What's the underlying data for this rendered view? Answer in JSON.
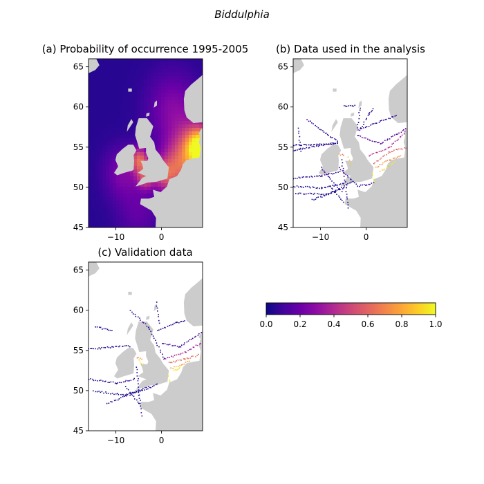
{
  "figure": {
    "suptitle": "Biddulphia"
  },
  "colors": {
    "land": "#cccccc",
    "spine": "#000000",
    "background": "#ffffff",
    "plasma": [
      "#0d0887",
      "#41049d",
      "#6a00a8",
      "#8f0da4",
      "#b12a90",
      "#cc4778",
      "#e16462",
      "#f2844b",
      "#fca636",
      "#fcce25",
      "#f0f921"
    ]
  },
  "chart_data": [
    {
      "type": "heatmap",
      "title": "(a) Probability of occurrence 1995-2005",
      "subtitle": "",
      "xlabel": "",
      "ylabel": "",
      "xlim": [
        -16,
        9
      ],
      "ylim": [
        45,
        66
      ],
      "x_ticks": [
        -10,
        0
      ],
      "y_ticks": [
        45,
        50,
        55,
        60,
        65
      ],
      "x_tick_labels": [
        "−10",
        "0"
      ],
      "y_tick_labels": [
        "45",
        "50",
        "55",
        "60",
        "65"
      ],
      "field": {
        "base_value": 0.05,
        "hotspots": [
          {
            "lon": 8.5,
            "lat": 55.0,
            "value": 0.85,
            "spread": 1.6
          },
          {
            "lon": 6.5,
            "lat": 54.0,
            "value": 0.45,
            "spread": 3.0
          },
          {
            "lon": -4.8,
            "lat": 53.4,
            "value": 0.55,
            "spread": 1.1
          },
          {
            "lon": -3.5,
            "lat": 51.2,
            "value": 0.45,
            "spread": 1.0
          },
          {
            "lon": 0.5,
            "lat": 51.5,
            "value": 0.4,
            "spread": 1.4
          },
          {
            "lon": 3.5,
            "lat": 52.5,
            "value": 0.3,
            "spread": 2.0
          },
          {
            "lon": -8.5,
            "lat": 51.8,
            "value": 0.25,
            "spread": 2.2
          },
          {
            "lon": 2.5,
            "lat": 60.0,
            "value": 0.25,
            "spread": 3.0
          },
          {
            "lon": -5.0,
            "lat": 47.0,
            "value": 0.18,
            "spread": 2.5
          }
        ]
      }
    },
    {
      "type": "scatter",
      "title": "(b) Data used in the analysis",
      "subtitle": "",
      "xlabel": "",
      "ylabel": "",
      "xlim": [
        -16,
        9
      ],
      "ylim": [
        45,
        66
      ],
      "x_ticks": [
        -10,
        0
      ],
      "y_ticks": [
        45,
        50,
        55,
        60,
        65
      ],
      "x_tick_labels": [
        "−10",
        "0"
      ],
      "y_tick_labels": [
        "45",
        "50",
        "55",
        "60",
        "65"
      ],
      "tracks": [
        {
          "points": [
            [
              -16,
              55.3
            ],
            [
              -11,
              55.4
            ],
            [
              -6.5,
              55.6
            ]
          ],
          "value": 0.0
        },
        {
          "points": [
            [
              -16,
              54.6
            ],
            [
              -11,
              55.2
            ],
            [
              -6.5,
              55.6
            ]
          ],
          "value": 0.05
        },
        {
          "points": [
            [
              -13,
              58.5
            ],
            [
              -9,
              56.8
            ],
            [
              -6.5,
              55.8
            ]
          ],
          "value": 0.05
        },
        {
          "points": [
            [
              -15,
              57.5
            ],
            [
              -14.5,
              54.5
            ]
          ],
          "value": 0.0
        },
        {
          "points": [
            [
              -16,
              51.2
            ],
            [
              -10,
              51.5
            ],
            [
              -6,
              52.0
            ]
          ],
          "value": 0.05
        },
        {
          "points": [
            [
              -16,
              50.2
            ],
            [
              -10,
              50.0
            ],
            [
              -5,
              50.5
            ]
          ],
          "value": 0.0
        },
        {
          "points": [
            [
              -15.5,
              49.3
            ],
            [
              -9,
              49.2
            ],
            [
              -5,
              50.0
            ]
          ],
          "value": 0.05
        },
        {
          "points": [
            [
              -12,
              48.5
            ],
            [
              -7,
              49.5
            ],
            [
              -3,
              50.8
            ]
          ],
          "value": 0.0
        },
        {
          "points": [
            [
              -10,
              52.5
            ],
            [
              -5.5,
              49.5
            ]
          ],
          "value": 0.05
        },
        {
          "points": [
            [
              -5.5,
              53.5
            ],
            [
              -4.5,
              50.0
            ],
            [
              -4.0,
              47.5
            ]
          ],
          "value": 0.05
        },
        {
          "points": [
            [
              -6,
              52.5
            ],
            [
              -2,
              50.2
            ],
            [
              1.5,
              50.6
            ]
          ],
          "value": 0.1
        },
        {
          "points": [
            [
              -8,
              50.2
            ],
            [
              -5,
              48.2
            ]
          ],
          "value": 0.0
        },
        {
          "points": [
            [
              -1.5,
              57.2
            ],
            [
              0.5,
              59.2
            ],
            [
              1.5,
              59.8
            ]
          ],
          "value": 0.0
        },
        {
          "points": [
            [
              -5,
              60.2
            ],
            [
              -2.5,
              60.2
            ]
          ],
          "value": 0.0
        },
        {
          "points": [
            [
              -1.5,
              60.0
            ],
            [
              -2,
              57.5
            ]
          ],
          "value": 0.0
        },
        {
          "points": [
            [
              -1.8,
              57.2
            ],
            [
              3,
              58.3
            ],
            [
              6.5,
              59.0
            ]
          ],
          "value": 0.05
        },
        {
          "points": [
            [
              -2,
              56.5
            ],
            [
              3,
              55.5
            ],
            [
              8.5,
              57.3
            ]
          ],
          "value": 0.15
        },
        {
          "points": [
            [
              0.5,
              54.0
            ],
            [
              5,
              55.0
            ],
            [
              8.5,
              57.0
            ]
          ],
          "value": 0.4
        },
        {
          "points": [
            [
              1.5,
              53.0
            ],
            [
              5,
              54.5
            ],
            [
              8.5,
              55.0
            ]
          ],
          "value": 0.6
        },
        {
          "points": [
            [
              2,
              52.5
            ],
            [
              5,
              53.5
            ],
            [
              7.5,
              54.0
            ]
          ],
          "value": 0.75
        },
        {
          "points": [
            [
              3,
              52.0
            ],
            [
              6,
              53.2
            ]
          ],
          "value": 0.9
        },
        {
          "points": [
            [
              1.2,
              51.8
            ],
            [
              1.7,
              50.8
            ]
          ],
          "value": 1.0
        },
        {
          "points": [
            [
              -4,
              53.8
            ],
            [
              -3.5,
              52.8
            ]
          ],
          "value": 0.9
        },
        {
          "points": [
            [
              -6,
              54.2
            ],
            [
              -5,
              54.0
            ]
          ],
          "value": 0.7
        }
      ]
    },
    {
      "type": "scatter",
      "title": "(c) Validation data",
      "subtitle": "",
      "xlabel": "",
      "ylabel": "",
      "xlim": [
        -16,
        9
      ],
      "ylim": [
        45,
        66
      ],
      "x_ticks": [
        -10,
        0
      ],
      "y_ticks": [
        45,
        50,
        55,
        60,
        65
      ],
      "x_tick_labels": [
        "−10",
        "0"
      ],
      "y_tick_labels": [
        "45",
        "50",
        "55",
        "60",
        "65"
      ],
      "tracks": [
        {
          "points": [
            [
              -16,
              55.2
            ],
            [
              -11,
              55.5
            ],
            [
              -7,
              55.6
            ]
          ],
          "value": 0.0
        },
        {
          "points": [
            [
              -14.5,
              58.0
            ],
            [
              -11,
              57.5
            ]
          ],
          "value": 0.0
        },
        {
          "points": [
            [
              -16,
              51.5
            ],
            [
              -10,
              51.0
            ],
            [
              -6,
              51.5
            ]
          ],
          "value": 0.05
        },
        {
          "points": [
            [
              -15,
              50.0
            ],
            [
              -8,
              49.5
            ],
            [
              -3,
              50.5
            ]
          ],
          "value": 0.0
        },
        {
          "points": [
            [
              -12,
              48.5
            ],
            [
              -6,
              49.8
            ],
            [
              -1,
              50.8
            ]
          ],
          "value": 0.05
        },
        {
          "points": [
            [
              -5.5,
              53.0
            ],
            [
              -5,
              49.5
            ],
            [
              -4.5,
              47.0
            ]
          ],
          "value": 0.05
        },
        {
          "points": [
            [
              -8,
              50.5
            ],
            [
              -5,
              48.5
            ]
          ],
          "value": 0.0
        },
        {
          "points": [
            [
              -7,
              60.0
            ],
            [
              -3,
              58.0
            ],
            [
              0.5,
              54.0
            ]
          ],
          "value": 0.05
        },
        {
          "points": [
            [
              -1.2,
              61.0
            ],
            [
              -0.5,
              58.5
            ]
          ],
          "value": 0.0
        },
        {
          "points": [
            [
              -1,
              57.5
            ],
            [
              3,
              58.5
            ],
            [
              5,
              58.8
            ]
          ],
          "value": 0.05
        },
        {
          "points": [
            [
              0,
              56.0
            ],
            [
              4,
              55.5
            ],
            [
              8.5,
              57.3
            ]
          ],
          "value": 0.1
        },
        {
          "points": [
            [
              0.5,
              54.0
            ],
            [
              5,
              54.8
            ],
            [
              8.5,
              56.0
            ]
          ],
          "value": 0.35
        },
        {
          "points": [
            [
              1.5,
              53.5
            ],
            [
              5,
              54.0
            ],
            [
              8,
              54.5
            ]
          ],
          "value": 0.6
        },
        {
          "points": [
            [
              2,
              52.8
            ],
            [
              6,
              53.7
            ]
          ],
          "value": 0.8
        },
        {
          "points": [
            [
              2.5,
              52.5
            ],
            [
              4,
              53.0
            ]
          ],
          "value": 1.0
        },
        {
          "points": [
            [
              1.3,
              52.0
            ],
            [
              1.6,
              51.2
            ]
          ],
          "value": 0.95
        },
        {
          "points": [
            [
              -5,
              53.9
            ],
            [
              -4.2,
              53.3
            ]
          ],
          "value": 0.9
        },
        {
          "points": [
            [
              -5.5,
              54.2
            ],
            [
              -4.5,
              54.0
            ]
          ],
          "value": 0.7
        }
      ]
    }
  ],
  "colorbar": {
    "range": [
      0.0,
      1.0
    ],
    "ticks": [
      0.0,
      0.2,
      0.4,
      0.6,
      0.8,
      1.0
    ],
    "tick_labels": [
      "0.0",
      "0.2",
      "0.4",
      "0.6",
      "0.8",
      "1.0"
    ],
    "colormap": "plasma"
  }
}
